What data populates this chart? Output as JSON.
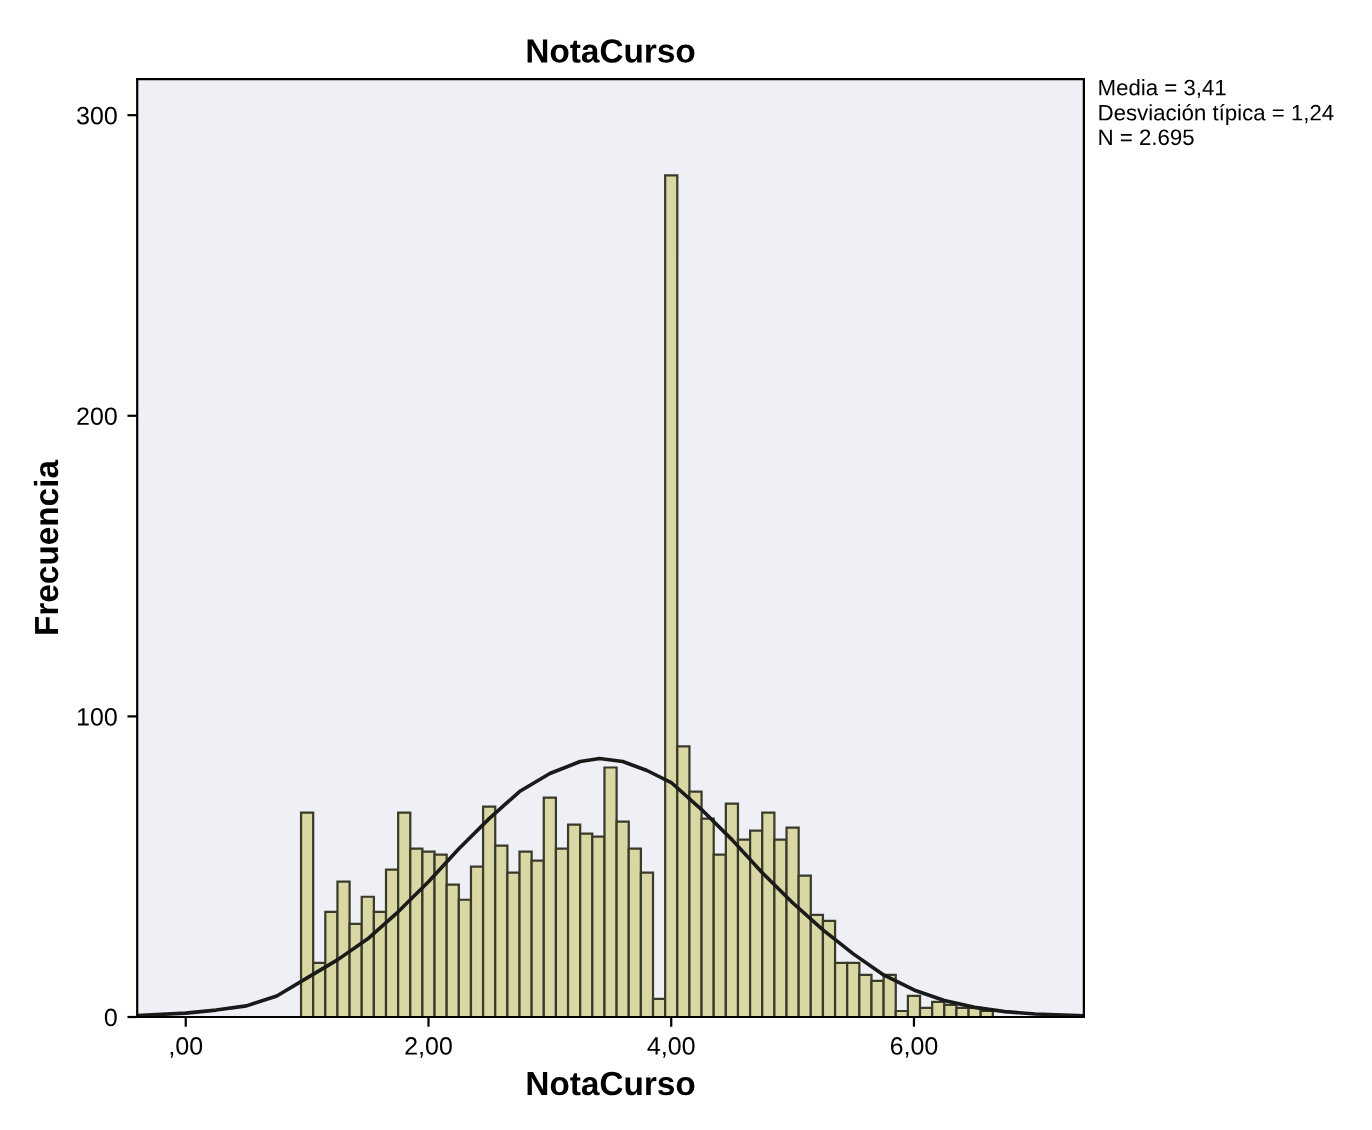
{
  "chart_data": {
    "type": "histogram",
    "title": "NotaCurso",
    "xlabel": "NotaCurso",
    "ylabel": "Frecuencia",
    "annotations": [
      "Media = 3,41",
      "Desviación típica = 1,24",
      "N = 2.695"
    ],
    "xlim": [
      -0.4,
      7.4
    ],
    "ylim": [
      0,
      312
    ],
    "xticks": [
      {
        "value": 0,
        "label": ",00"
      },
      {
        "value": 2,
        "label": "2,00"
      },
      {
        "value": 4,
        "label": "4,00"
      },
      {
        "value": 6,
        "label": "6,00"
      }
    ],
    "yticks": [
      0,
      100,
      200,
      300
    ],
    "grid": false,
    "legend": false,
    "series": [
      {
        "color": "#d9d7a3",
        "bins": [
          0.95,
          1.05,
          1.15,
          1.25,
          1.35,
          1.45,
          1.55,
          1.65,
          1.75,
          1.85,
          1.95,
          2.05,
          2.15,
          2.25,
          2.35,
          2.45,
          2.55,
          2.65,
          2.75,
          2.85,
          2.95,
          3.05,
          3.15,
          3.25,
          3.35,
          3.45,
          3.55,
          3.65,
          3.75,
          3.85,
          3.95,
          4.05,
          4.15,
          4.25,
          4.35,
          4.45,
          4.55,
          4.65,
          4.75,
          4.85,
          4.95,
          5.05,
          5.15,
          5.25,
          5.35,
          5.45,
          5.55,
          5.65,
          5.75,
          5.85,
          5.95,
          6.05,
          6.15,
          6.25,
          6.35,
          6.45,
          6.55,
          6.65,
          6.75,
          6.85,
          6.95
        ],
        "values": [
          68,
          18,
          35,
          45,
          31,
          40,
          35,
          49,
          68,
          56,
          55,
          54,
          44,
          39,
          50,
          70,
          57,
          48,
          55,
          52,
          73,
          56,
          64,
          61,
          60,
          83,
          65,
          56,
          48,
          6,
          280,
          90,
          75,
          66,
          54,
          71,
          59,
          62,
          68,
          59,
          63,
          47,
          34,
          32,
          18,
          18,
          14,
          12,
          14,
          2,
          7,
          3,
          5,
          4,
          3,
          3,
          2,
          null,
          null,
          null
        ]
      },
      {
        "type": "line",
        "color": "#1a1a1a",
        "x": [
          -0.4,
          0,
          0.25,
          0.5,
          0.75,
          1.0,
          1.25,
          1.5,
          1.75,
          2.0,
          2.25,
          2.5,
          2.75,
          3.0,
          3.25,
          3.41,
          3.6,
          3.8,
          4.0,
          4.25,
          4.5,
          4.75,
          5.0,
          5.25,
          5.5,
          5.75,
          6.0,
          6.25,
          6.5,
          6.75,
          7.0,
          7.4
        ],
        "values": [
          0.5,
          1.3,
          2.3,
          3.7,
          7,
          13,
          19,
          26,
          35,
          45,
          56,
          66,
          75,
          81,
          85,
          86,
          85,
          82,
          78,
          69,
          59,
          48,
          38,
          29,
          21,
          14,
          9,
          5.5,
          3.2,
          1.8,
          1,
          0.4
        ]
      }
    ]
  }
}
